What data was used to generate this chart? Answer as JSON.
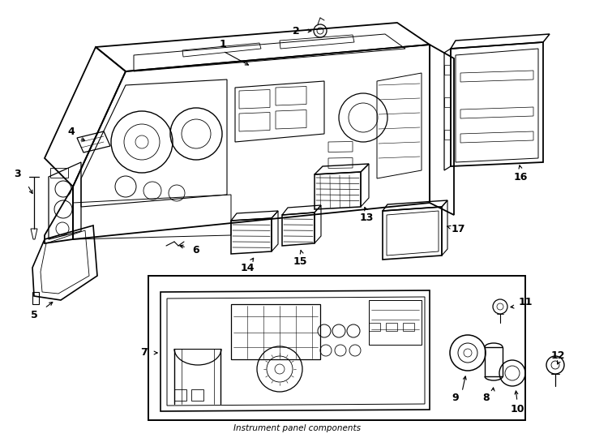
{
  "bg_color": "#ffffff",
  "line_color": "#000000",
  "fig_width": 7.34,
  "fig_height": 5.4,
  "dpi": 100,
  "title": "Instrument panel components"
}
